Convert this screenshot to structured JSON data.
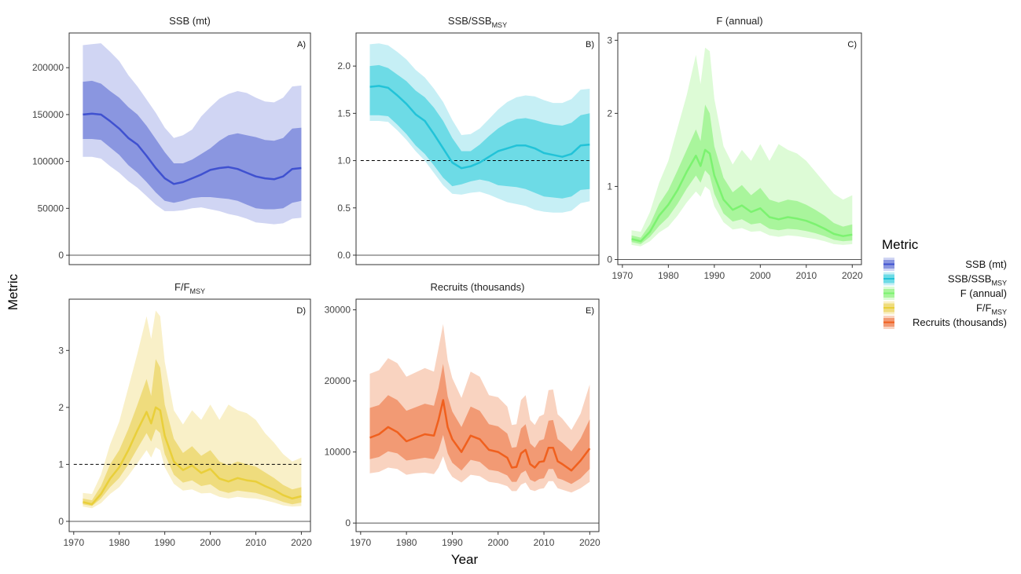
{
  "figure": {
    "xlabel": "Year",
    "ylabel": "Metric",
    "legend": {
      "title": "Metric",
      "placement": "right",
      "entries": [
        {
          "label": "SSB (mt)",
          "main": "SSB (mt)",
          "sub": "",
          "color": "#3f51d0"
        },
        {
          "label": "SSB/SSB_MSY",
          "main": "SSB/SSB",
          "sub": "MSY",
          "color": "#22c3d8"
        },
        {
          "label": "F (annual)",
          "main": "F (annual)",
          "sub": "",
          "color": "#7cf270"
        },
        {
          "label": "F/F_MSY",
          "main": "F/F",
          "sub": "MSY",
          "color": "#e9cf3a"
        },
        {
          "label": "Recruits (thousands)",
          "main": "Recruits (thousands)",
          "sub": "",
          "color": "#f0601e"
        }
      ]
    }
  },
  "chart_data": [
    {
      "type": "area",
      "panel": "A)",
      "title": "SSB (mt)",
      "title_main": "SSB (mt)",
      "title_sub": "",
      "color": "#3f51d0",
      "inner_color": "#8a96e0",
      "outer_color": "#d0d5f3",
      "xlim": [
        1969,
        2022
      ],
      "ylim": [
        -10000,
        237000
      ],
      "yticks": [
        0,
        50000,
        100000,
        150000,
        200000
      ],
      "xticks": [],
      "show_x_axis": false,
      "ref_line": null,
      "x": [
        1972,
        1974,
        1976,
        1978,
        1980,
        1982,
        1984,
        1986,
        1988,
        1990,
        1992,
        1994,
        1996,
        1998,
        2000,
        2002,
        2004,
        2006,
        2008,
        2010,
        2012,
        2014,
        2016,
        2018,
        2020
      ],
      "median": [
        150000,
        151000,
        150000,
        143000,
        135000,
        125000,
        118000,
        106000,
        93000,
        82000,
        76000,
        78000,
        82000,
        86000,
        91000,
        93000,
        94000,
        92000,
        88000,
        84000,
        82000,
        81000,
        84000,
        92000,
        93000
      ],
      "lower_50": [
        124000,
        124000,
        123000,
        115000,
        107000,
        96000,
        88000,
        78000,
        67000,
        58000,
        56000,
        58000,
        61000,
        62000,
        62000,
        61000,
        60000,
        58000,
        54000,
        50000,
        49000,
        49000,
        50000,
        56000,
        58000
      ],
      "upper_50": [
        185000,
        186000,
        183000,
        175000,
        168000,
        158000,
        150000,
        138000,
        124000,
        110000,
        98000,
        98000,
        102000,
        108000,
        114000,
        122000,
        128000,
        130000,
        128000,
        126000,
        123000,
        122000,
        125000,
        135000,
        136000
      ],
      "lower_95": [
        105000,
        105000,
        103000,
        95000,
        88000,
        79000,
        72000,
        63000,
        54000,
        47000,
        47000,
        48000,
        50000,
        51000,
        49000,
        47000,
        44000,
        42000,
        39000,
        35000,
        34000,
        33000,
        34000,
        39000,
        40000
      ],
      "upper_95": [
        224000,
        225000,
        226000,
        217000,
        207000,
        192000,
        180000,
        166000,
        152000,
        136000,
        125000,
        128000,
        134000,
        148000,
        158000,
        167000,
        172000,
        175000,
        173000,
        168000,
        164000,
        163000,
        168000,
        180000,
        181000
      ]
    },
    {
      "type": "area",
      "panel": "B)",
      "title": "SSB/SSB_MSY",
      "title_main": "SSB/SSB",
      "title_sub": "MSY",
      "color": "#22c3d8",
      "inner_color": "#6ddbe6",
      "outer_color": "#c6eff5",
      "xlim": [
        1969,
        2022
      ],
      "ylim": [
        -0.1,
        2.35
      ],
      "yticks": [
        0.0,
        0.5,
        1.0,
        1.5,
        2.0
      ],
      "xticks": [],
      "show_x_axis": false,
      "ref_line": 1.0,
      "x": [
        1972,
        1974,
        1976,
        1978,
        1980,
        1982,
        1984,
        1986,
        1988,
        1990,
        1992,
        1994,
        1996,
        1998,
        2000,
        2002,
        2004,
        2006,
        2008,
        2010,
        2012,
        2014,
        2016,
        2018,
        2020
      ],
      "median": [
        1.78,
        1.79,
        1.77,
        1.69,
        1.6,
        1.49,
        1.42,
        1.28,
        1.13,
        0.98,
        0.92,
        0.94,
        0.98,
        1.04,
        1.1,
        1.13,
        1.16,
        1.16,
        1.13,
        1.08,
        1.06,
        1.04,
        1.07,
        1.16,
        1.17
      ],
      "lower_50": [
        1.48,
        1.48,
        1.47,
        1.38,
        1.28,
        1.16,
        1.07,
        0.95,
        0.82,
        0.73,
        0.75,
        0.78,
        0.8,
        0.78,
        0.74,
        0.73,
        0.72,
        0.7,
        0.66,
        0.62,
        0.61,
        0.6,
        0.62,
        0.69,
        0.7
      ],
      "upper_50": [
        2.0,
        2.01,
        1.98,
        1.91,
        1.84,
        1.74,
        1.67,
        1.56,
        1.42,
        1.24,
        1.1,
        1.1,
        1.17,
        1.26,
        1.34,
        1.4,
        1.44,
        1.45,
        1.43,
        1.4,
        1.38,
        1.37,
        1.4,
        1.48,
        1.5
      ],
      "lower_95": [
        1.42,
        1.42,
        1.41,
        1.32,
        1.22,
        1.1,
        1.0,
        0.87,
        0.74,
        0.65,
        0.64,
        0.66,
        0.67,
        0.64,
        0.6,
        0.56,
        0.54,
        0.52,
        0.48,
        0.46,
        0.45,
        0.45,
        0.47,
        0.55,
        0.57
      ],
      "upper_95": [
        2.23,
        2.24,
        2.22,
        2.15,
        2.07,
        1.96,
        1.88,
        1.76,
        1.62,
        1.43,
        1.27,
        1.28,
        1.34,
        1.44,
        1.54,
        1.62,
        1.67,
        1.69,
        1.68,
        1.64,
        1.61,
        1.61,
        1.65,
        1.75,
        1.76
      ]
    },
    {
      "type": "area",
      "panel": "C)",
      "title": "F (annual)",
      "title_main": "F (annual)",
      "title_sub": "",
      "color": "#7cf270",
      "inner_color": "#a9f59c",
      "outer_color": "#ddfbd6",
      "xlim": [
        1969,
        2022
      ],
      "ylim": [
        -0.07,
        3.1
      ],
      "yticks": [
        0,
        1,
        2,
        3
      ],
      "xticks": [
        1970,
        1980,
        1990,
        2000,
        2010,
        2020
      ],
      "show_x_axis": true,
      "ref_line": null,
      "x": [
        1972,
        1974,
        1976,
        1978,
        1980,
        1982,
        1984,
        1986,
        1987,
        1988,
        1989,
        1990,
        1992,
        1994,
        1996,
        1998,
        2000,
        2002,
        2004,
        2006,
        2008,
        2010,
        2012,
        2014,
        2016,
        2018,
        2020
      ],
      "median": [
        0.28,
        0.25,
        0.38,
        0.6,
        0.75,
        0.95,
        1.2,
        1.42,
        1.28,
        1.5,
        1.45,
        1.15,
        0.82,
        0.68,
        0.74,
        0.65,
        0.7,
        0.58,
        0.55,
        0.58,
        0.56,
        0.53,
        0.48,
        0.42,
        0.35,
        0.32,
        0.34
      ],
      "lower_50": [
        0.24,
        0.21,
        0.31,
        0.46,
        0.58,
        0.76,
        0.97,
        1.15,
        1.05,
        1.22,
        1.15,
        0.9,
        0.63,
        0.52,
        0.55,
        0.48,
        0.5,
        0.42,
        0.4,
        0.42,
        0.41,
        0.39,
        0.36,
        0.32,
        0.27,
        0.25,
        0.26
      ],
      "upper_50": [
        0.33,
        0.3,
        0.48,
        0.76,
        0.95,
        1.22,
        1.5,
        1.78,
        1.62,
        2.12,
        2.0,
        1.55,
        1.12,
        0.92,
        1.02,
        0.88,
        0.98,
        0.82,
        0.78,
        0.82,
        0.8,
        0.75,
        0.68,
        0.6,
        0.5,
        0.45,
        0.48
      ],
      "lower_95": [
        0.2,
        0.18,
        0.25,
        0.37,
        0.45,
        0.6,
        0.78,
        0.93,
        0.86,
        1.0,
        0.95,
        0.73,
        0.51,
        0.41,
        0.43,
        0.38,
        0.39,
        0.33,
        0.31,
        0.33,
        0.32,
        0.3,
        0.28,
        0.25,
        0.21,
        0.2,
        0.21
      ],
      "upper_95": [
        0.4,
        0.38,
        0.65,
        1.05,
        1.35,
        1.8,
        2.25,
        2.8,
        2.4,
        2.9,
        2.85,
        2.2,
        1.55,
        1.3,
        1.5,
        1.35,
        1.58,
        1.35,
        1.58,
        1.5,
        1.45,
        1.35,
        1.2,
        1.05,
        0.9,
        0.82,
        0.88
      ]
    },
    {
      "type": "area",
      "panel": "D)",
      "title": "F/F_MSY",
      "title_main": "F/F",
      "title_sub": "MSY",
      "color": "#e9cf3a",
      "inner_color": "#efdc7d",
      "outer_color": "#f9f0c8",
      "xlim": [
        1969,
        2022
      ],
      "ylim": [
        -0.18,
        3.9
      ],
      "yticks": [
        0,
        1,
        2,
        3
      ],
      "xticks": [
        1970,
        1980,
        1990,
        2000,
        2010,
        2020
      ],
      "show_x_axis": true,
      "ref_line": 1.0,
      "x": [
        1972,
        1974,
        1976,
        1978,
        1980,
        1982,
        1984,
        1986,
        1987,
        1988,
        1989,
        1990,
        1992,
        1994,
        1996,
        1998,
        2000,
        2002,
        2004,
        2006,
        2008,
        2010,
        2012,
        2014,
        2016,
        2018,
        2020
      ],
      "median": [
        0.34,
        0.3,
        0.48,
        0.75,
        0.95,
        1.25,
        1.6,
        1.92,
        1.72,
        2.0,
        1.95,
        1.5,
        1.05,
        0.9,
        0.98,
        0.85,
        0.92,
        0.75,
        0.7,
        0.76,
        0.72,
        0.7,
        0.62,
        0.55,
        0.46,
        0.4,
        0.44
      ],
      "lower_50": [
        0.3,
        0.27,
        0.4,
        0.6,
        0.76,
        1.0,
        1.28,
        1.55,
        1.4,
        1.62,
        1.55,
        1.18,
        0.82,
        0.68,
        0.72,
        0.62,
        0.65,
        0.54,
        0.5,
        0.54,
        0.52,
        0.5,
        0.45,
        0.4,
        0.34,
        0.3,
        0.33
      ],
      "upper_50": [
        0.4,
        0.37,
        0.62,
        1.0,
        1.25,
        1.62,
        2.05,
        2.5,
        2.2,
        2.85,
        2.7,
        2.05,
        1.45,
        1.2,
        1.32,
        1.15,
        1.25,
        1.05,
        0.98,
        1.05,
        1.0,
        0.96,
        0.86,
        0.76,
        0.64,
        0.56,
        0.6
      ],
      "lower_95": [
        0.26,
        0.23,
        0.32,
        0.48,
        0.6,
        0.8,
        1.02,
        1.25,
        1.12,
        1.3,
        1.25,
        0.95,
        0.66,
        0.54,
        0.56,
        0.49,
        0.5,
        0.43,
        0.4,
        0.43,
        0.41,
        0.4,
        0.37,
        0.33,
        0.28,
        0.26,
        0.27
      ],
      "upper_95": [
        0.5,
        0.48,
        0.82,
        1.35,
        1.75,
        2.35,
        2.95,
        3.6,
        3.2,
        3.7,
        3.6,
        2.8,
        1.95,
        1.7,
        1.95,
        1.78,
        2.05,
        1.78,
        2.05,
        1.95,
        1.9,
        1.78,
        1.55,
        1.38,
        1.18,
        1.05,
        1.12
      ]
    },
    {
      "type": "area",
      "panel": "E)",
      "title": "Recruits (thousands)",
      "title_main": "Recruits (thousands)",
      "title_sub": "",
      "color": "#f0601e",
      "inner_color": "#f29a74",
      "outer_color": "#f9d3c0",
      "xlim": [
        1969,
        2022
      ],
      "ylim": [
        -1200,
        31500
      ],
      "yticks": [
        0,
        10000,
        20000,
        30000
      ],
      "xticks": [
        1970,
        1980,
        1990,
        2000,
        2010,
        2020
      ],
      "show_x_axis": true,
      "ref_line": null,
      "x": [
        1972,
        1974,
        1976,
        1978,
        1980,
        1982,
        1984,
        1986,
        1987,
        1988,
        1989,
        1990,
        1992,
        1994,
        1996,
        1998,
        2000,
        2002,
        2003,
        2004,
        2005,
        2006,
        2007,
        2008,
        2009,
        2010,
        2011,
        2012,
        2013,
        2014,
        2016,
        2018,
        2020
      ],
      "median": [
        12000,
        12500,
        13500,
        12800,
        11500,
        12000,
        12500,
        12300,
        14500,
        17300,
        13500,
        11800,
        10000,
        12300,
        11800,
        10300,
        10000,
        9200,
        7800,
        7900,
        9800,
        10300,
        8300,
        7800,
        8600,
        8700,
        10600,
        10600,
        8700,
        8300,
        7400,
        8800,
        10500
      ],
      "lower_50": [
        9000,
        9300,
        10100,
        9800,
        8800,
        9000,
        9200,
        9000,
        10200,
        12400,
        9800,
        8500,
        7400,
        8900,
        8600,
        7500,
        7300,
        6700,
        5800,
        5800,
        7000,
        7400,
        6100,
        5800,
        6200,
        6300,
        7600,
        7600,
        6300,
        6100,
        5500,
        6300,
        7600
      ],
      "upper_50": [
        16200,
        16600,
        18000,
        17300,
        15800,
        16300,
        16800,
        16500,
        19000,
        22400,
        17800,
        15700,
        13500,
        16400,
        15800,
        13900,
        13600,
        12600,
        10600,
        10700,
        13300,
        13900,
        11200,
        10600,
        11600,
        11800,
        14400,
        14500,
        11800,
        11300,
        10100,
        11900,
        14600
      ],
      "lower_95": [
        7000,
        7200,
        7800,
        7600,
        6800,
        7000,
        7100,
        6900,
        7800,
        9400,
        7500,
        6500,
        5700,
        6800,
        6600,
        5800,
        5600,
        5200,
        4500,
        4500,
        5400,
        5700,
        4700,
        4500,
        4800,
        4900,
        5900,
        5900,
        4900,
        4700,
        4300,
        4900,
        5800
      ],
      "upper_95": [
        21000,
        21500,
        23200,
        22500,
        20600,
        21200,
        21800,
        21300,
        24600,
        28000,
        22900,
        20400,
        17600,
        21300,
        20600,
        18000,
        17700,
        16400,
        13800,
        13900,
        17300,
        18000,
        14500,
        13800,
        15000,
        15300,
        18700,
        18800,
        15300,
        14700,
        13100,
        15400,
        19500
      ]
    }
  ]
}
